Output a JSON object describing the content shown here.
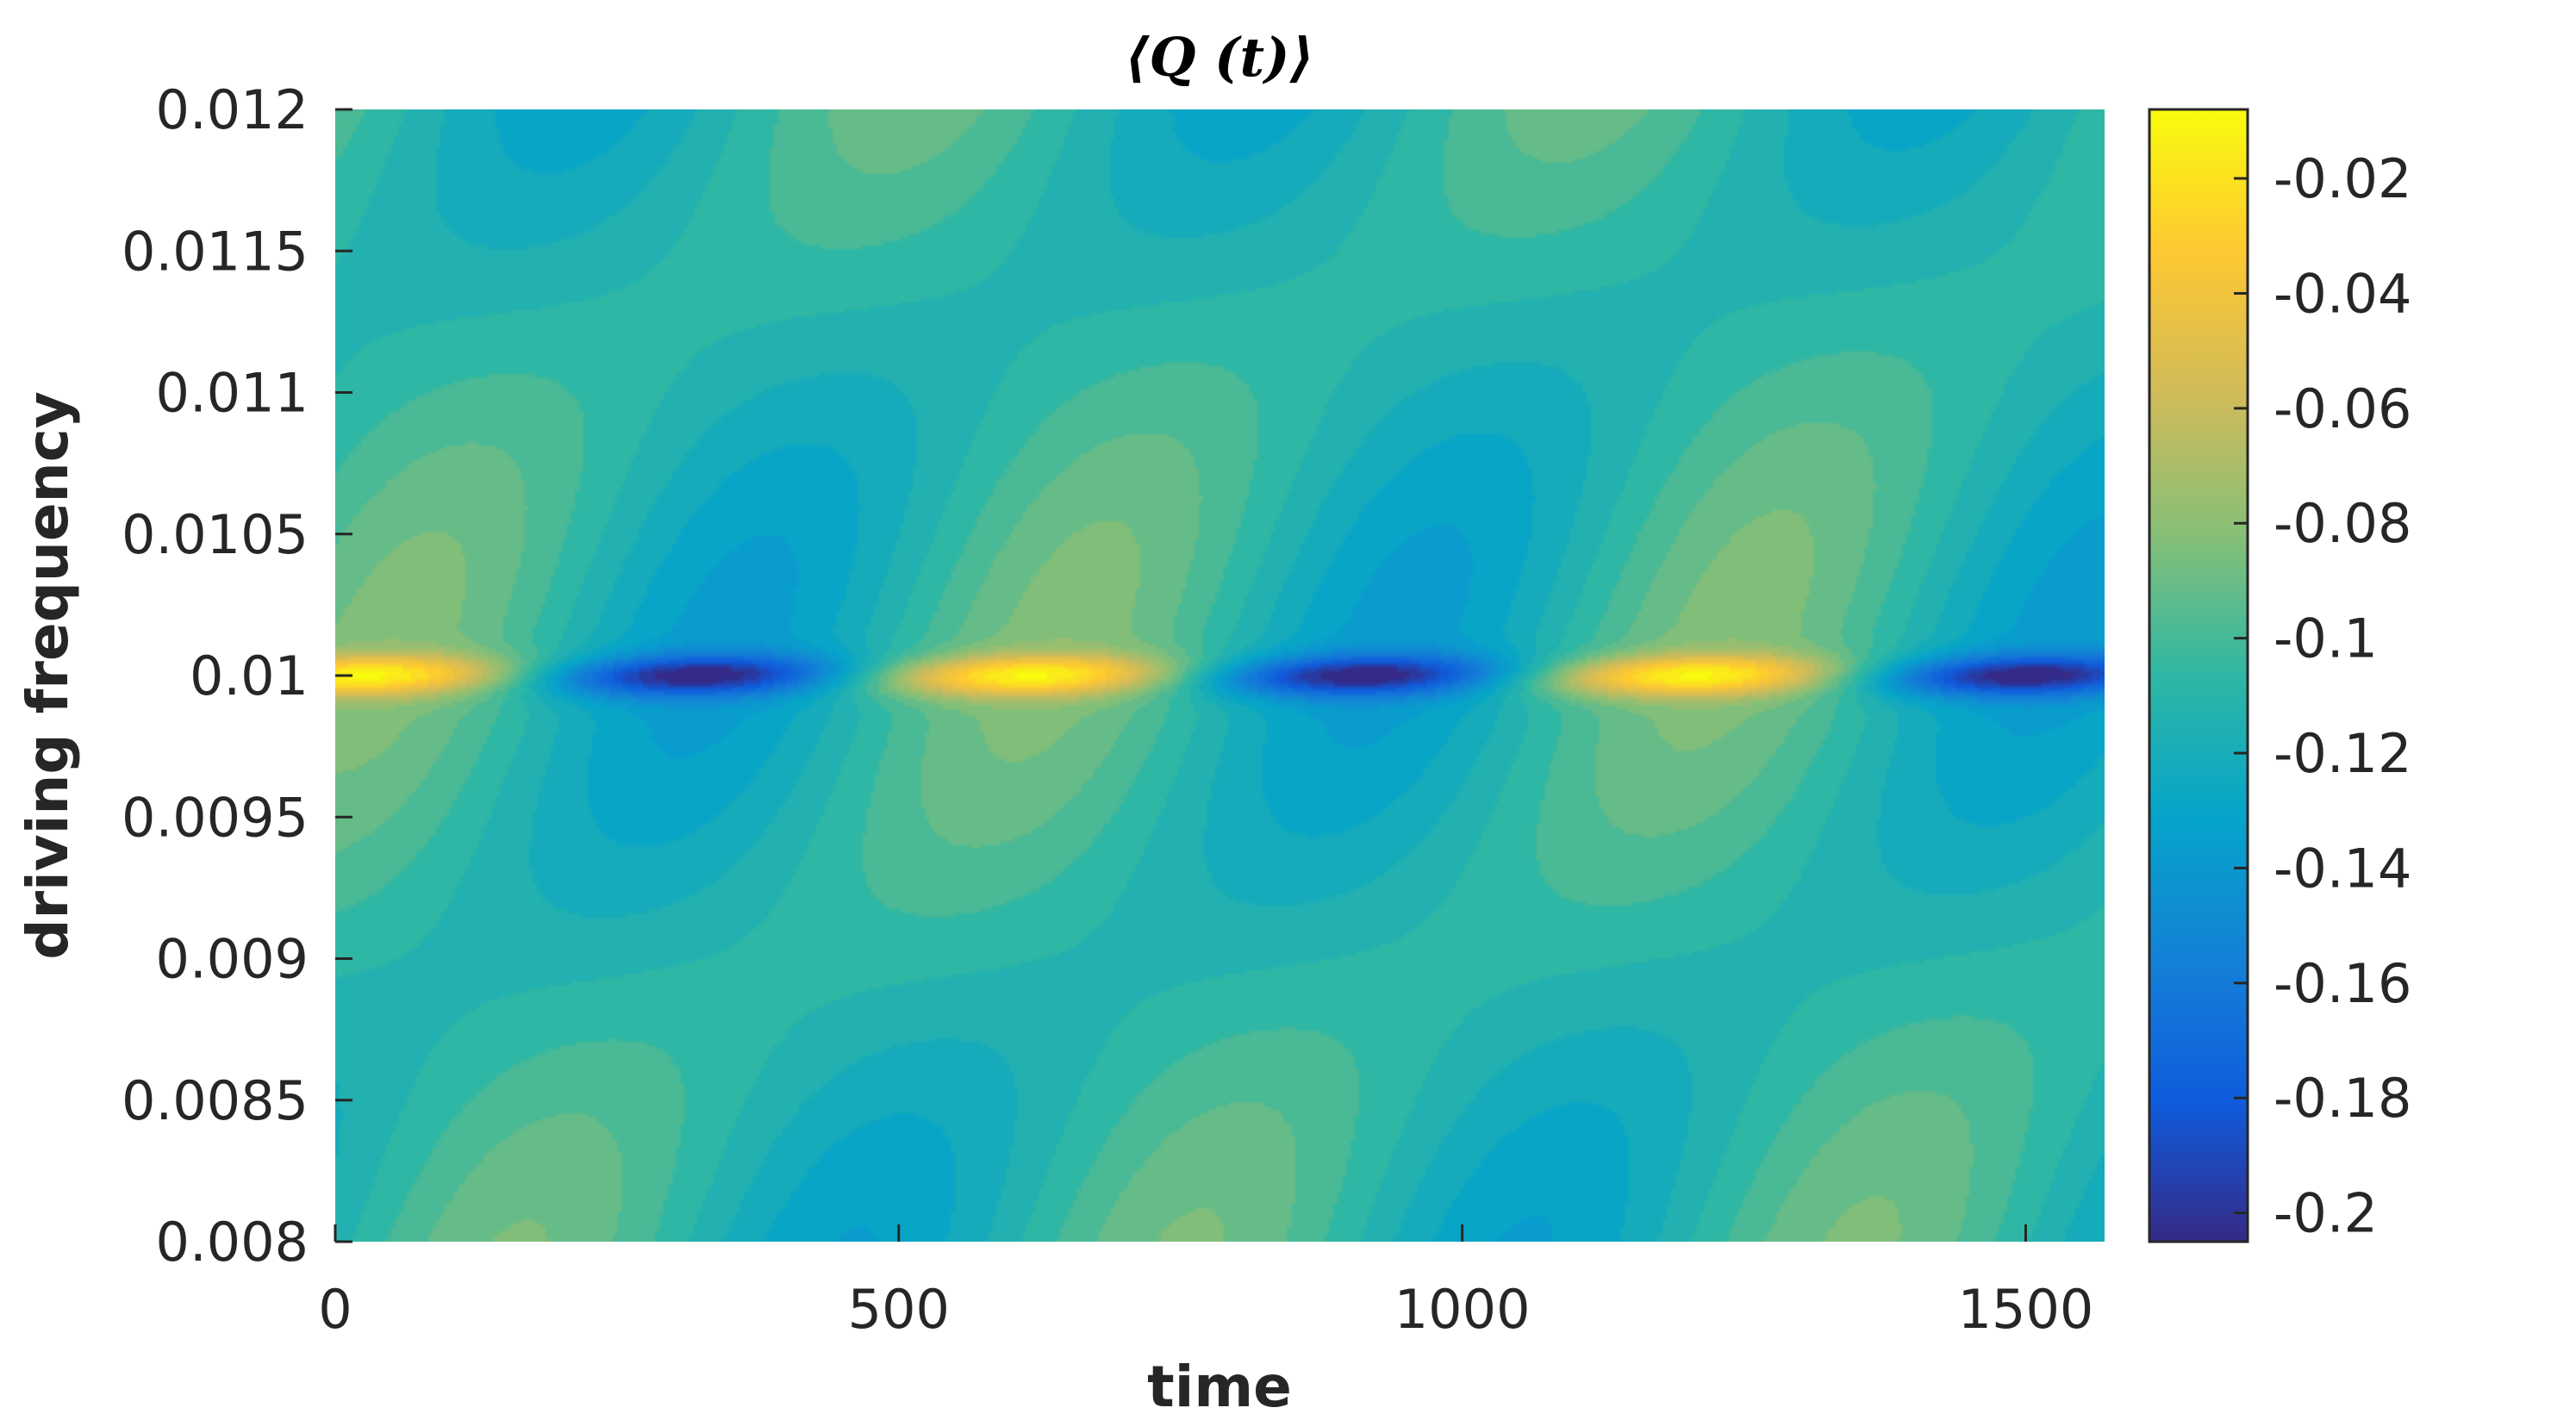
{
  "chart_data": {
    "type": "heatmap",
    "title": "⟨Q (t)⟩",
    "xlabel": "time",
    "ylabel": "driving frequency",
    "xlim": [
      0,
      1570
    ],
    "ylim": [
      0.008,
      0.012
    ],
    "x_ticks": [
      0,
      500,
      1000,
      1500
    ],
    "x_tick_labels": [
      "0",
      "500",
      "1000",
      "1500"
    ],
    "y_ticks": [
      0.008,
      0.0085,
      0.009,
      0.0095,
      0.01,
      0.0105,
      0.011,
      0.0115,
      0.012
    ],
    "y_tick_labels": [
      "0.008",
      "0.0085",
      "0.009",
      "0.0095",
      "0.01",
      "0.0105",
      "0.011",
      "0.0115",
      "0.012"
    ],
    "colorbar": {
      "clim": [
        -0.205,
        -0.008
      ],
      "ticks": [
        -0.02,
        -0.04,
        -0.06,
        -0.08,
        -0.1,
        -0.12,
        -0.14,
        -0.16,
        -0.18,
        -0.2
      ],
      "tick_labels": [
        "-0.02",
        "-0.04",
        "-0.06",
        "-0.08",
        "-0.1",
        "-0.12",
        "-0.14",
        "-0.16",
        "-0.18",
        "-0.2"
      ],
      "colormap": "parula",
      "colormap_stops": [
        "#352a87",
        "#0f5cdd",
        "#1481d6",
        "#06a4ca",
        "#2eb7a4",
        "#87bf77",
        "#d1bb59",
        "#fec832",
        "#f9fb0e"
      ]
    },
    "grid": false,
    "pattern": {
      "baseline": -0.11,
      "resonance_frequency": 0.01,
      "peak_times_yellow": [
        480,
        1090
      ],
      "peak_times_dark_blue": [
        200,
        760,
        1380
      ],
      "extreme_values": {
        "max": -0.01,
        "min": -0.2
      }
    }
  }
}
